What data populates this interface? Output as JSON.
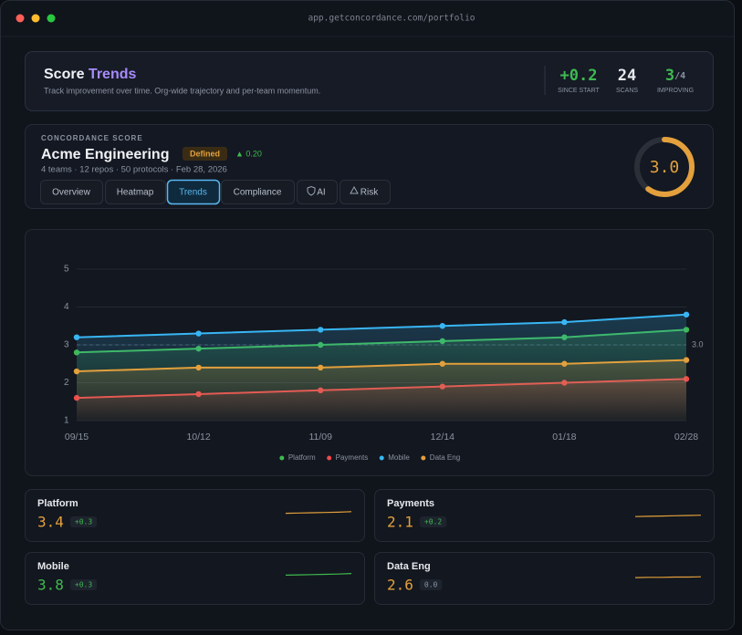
{
  "window": {
    "url": "app.getconcordance.com/portfolio"
  },
  "header": {
    "title": "Score",
    "title_accent": "Trends",
    "subtitle": "Track improvement over time. Org-wide trajectory and per-team momentum.",
    "stats": [
      {
        "value": "+0.2",
        "label": "SINCE START",
        "color": "#3fb950"
      },
      {
        "value": 24,
        "label": "SCANS",
        "color": "#e6e8ec"
      },
      {
        "value": 3,
        "suffix": "/4",
        "label": "IMPROVING",
        "color": "#3fb950"
      }
    ]
  },
  "org": {
    "eyebrow": "CONCORDANCE SCORE",
    "name": "Acme Engineering",
    "badge": "Defined",
    "delta": "▲ 0.20",
    "meta": "4 teams · 12 repos · 50 protocols · Feb 28, 2026",
    "score": {
      "value": 3,
      "label": "3.0"
    },
    "score_color": "#e3a03c",
    "tabs": [
      "Overview",
      "Heatmap",
      "Trends",
      "Compliance",
      "AI",
      "Risk"
    ],
    "active_tab": 2
  },
  "chart_data": {
    "type": "line",
    "categories": [
      "09/15",
      "10/12",
      "11/09",
      "12/14",
      "01/18",
      "02/28"
    ],
    "series": [
      {
        "name": "Platform",
        "color": "#3fb950",
        "values": [
          2.8,
          2.9,
          3.0,
          3.1,
          3.2,
          3.4
        ]
      },
      {
        "name": "Payments",
        "color": "#f04a4a",
        "values": [
          1.6,
          1.7,
          1.8,
          1.9,
          2.0,
          2.1
        ]
      },
      {
        "name": "Mobile",
        "color": "#38b6f4",
        "values": [
          3.2,
          3.3,
          3.4,
          3.5,
          3.6,
          3.8
        ]
      },
      {
        "name": "Data Eng",
        "color": "#e3a03c",
        "values": [
          2.3,
          2.4,
          2.4,
          2.5,
          2.5,
          2.6
        ]
      }
    ],
    "ylim": [
      1,
      5
    ],
    "yticks": [
      1,
      2,
      3,
      4,
      5
    ],
    "grid": true,
    "reference": {
      "value": 3,
      "label": "3.0"
    },
    "legend": "bottom"
  },
  "teams": [
    {
      "name": "Platform",
      "score": 3.4,
      "delta": "+0.3",
      "color": "#e3a03c",
      "delta_color": "#3fb950"
    },
    {
      "name": "Payments",
      "score": 2.1,
      "delta": "+0.2",
      "color": "#e3a03c",
      "delta_color": "#3fb950"
    },
    {
      "name": "Mobile",
      "score": 3.8,
      "delta": "+0.3",
      "color": "#3fb950",
      "delta_color": "#3fb950"
    },
    {
      "name": "Data Eng",
      "score": 2.6,
      "delta": "0.0",
      "color": "#e3a03c",
      "delta_color": "#8b93a1"
    }
  ]
}
